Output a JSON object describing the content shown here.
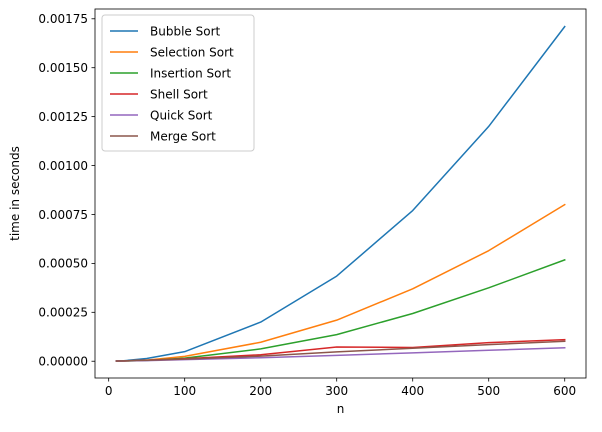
{
  "chart_data": {
    "type": "line",
    "title": "",
    "xlabel": "n",
    "ylabel": "time in seconds",
    "xlim": [
      -18,
      628
    ],
    "ylim": [
      -8.57e-05,
      0.0018
    ],
    "x_ticks": [
      0,
      100,
      200,
      300,
      400,
      500,
      600
    ],
    "x_tick_labels": [
      "0",
      "100",
      "200",
      "300",
      "400",
      "500",
      "600"
    ],
    "y_ticks": [
      0,
      0.00025,
      0.0005,
      0.00075,
      0.001,
      0.00125,
      0.0015,
      0.00175
    ],
    "y_tick_labels": [
      "0.00000",
      "0.00025",
      "0.00050",
      "0.00075",
      "0.00100",
      "0.00125",
      "0.00150",
      "0.00175"
    ],
    "grid": false,
    "legend_position": "top-left",
    "x": [
      10,
      20,
      50,
      100,
      200,
      300,
      400,
      500,
      600
    ],
    "series": [
      {
        "name": "Bubble Sort",
        "color": "#1f77b4",
        "values": [
          1e-06,
          2.5e-06,
          1.4e-05,
          4.9e-05,
          0.0002,
          0.000435,
          0.00077,
          0.0012,
          0.00171
        ]
      },
      {
        "name": "Selection Sort",
        "color": "#ff7f0e",
        "values": [
          5e-07,
          1.5e-06,
          6e-06,
          2.5e-05,
          9.7e-05,
          0.00021,
          0.00037,
          0.000565,
          0.0008
        ]
      },
      {
        "name": "Insertion Sort",
        "color": "#2ca02c",
        "values": [
          5e-07,
          1e-06,
          4e-06,
          1.6e-05,
          6.3e-05,
          0.000136,
          0.000244,
          0.000375,
          0.000518
        ]
      },
      {
        "name": "Shell Sort",
        "color": "#d62728",
        "values": [
          1e-06,
          1.5e-06,
          5e-06,
          1.3e-05,
          3.3e-05,
          7.3e-05,
          7e-05,
          9.5e-05,
          0.00011
        ]
      },
      {
        "name": "Quick Sort",
        "color": "#9467bd",
        "values": [
          1e-06,
          1.5e-06,
          3e-06,
          8e-06,
          1.8e-05,
          3e-05,
          4.3e-05,
          5.6e-05,
          6.9e-05
        ]
      },
      {
        "name": "Merge Sort",
        "color": "#8c564b",
        "values": [
          1e-06,
          2e-06,
          5e-06,
          1.1e-05,
          2.6e-05,
          4.8e-05,
          6.6e-05,
          8.5e-05,
          0.000102
        ]
      }
    ]
  }
}
